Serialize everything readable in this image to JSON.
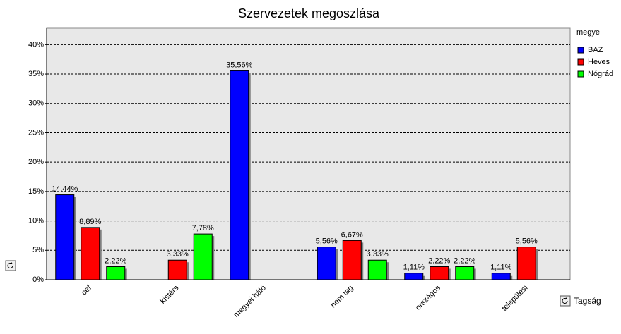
{
  "chart_data": {
    "type": "bar",
    "title": "Szervezetek megoszlása",
    "categories": [
      "cef",
      "kistérs",
      "megyei háló",
      "nem tag",
      "országos",
      "települési"
    ],
    "series": [
      {
        "name": "BAZ",
        "color": "#0000ff",
        "values": [
          14.44,
          null,
          35.56,
          5.56,
          1.11,
          1.11
        ],
        "value_labels": [
          "14,44%",
          null,
          "35,56%",
          "5,56%",
          "1,11%",
          "1,11%"
        ]
      },
      {
        "name": "Heves",
        "color": "#ff0000",
        "values": [
          8.89,
          3.33,
          null,
          6.67,
          2.22,
          5.56
        ],
        "value_labels": [
          "8,89%",
          "3,33%",
          null,
          "6,67%",
          "2,22%",
          "5,56%"
        ]
      },
      {
        "name": "Nógrád",
        "color": "#00ff00",
        "values": [
          2.22,
          7.78,
          null,
          3.33,
          2.22,
          null
        ],
        "value_labels": [
          "2,22%",
          "7,78%",
          null,
          "3,33%",
          "2,22%",
          null
        ]
      }
    ],
    "legend_title": "megye",
    "x_label": "Tagság",
    "ylim": [
      0,
      42.8
    ],
    "yticks": [
      {
        "value": 0,
        "label": "0%"
      },
      {
        "value": 5,
        "label": "5%"
      },
      {
        "value": 10,
        "label": "10%"
      },
      {
        "value": 15,
        "label": "15%"
      },
      {
        "value": 20,
        "label": "20%"
      },
      {
        "value": 25,
        "label": "25%"
      },
      {
        "value": 30,
        "label": "30%"
      },
      {
        "value": 35,
        "label": "35%"
      },
      {
        "value": 40,
        "label": "40%"
      }
    ],
    "grid": true,
    "legend": "right"
  }
}
